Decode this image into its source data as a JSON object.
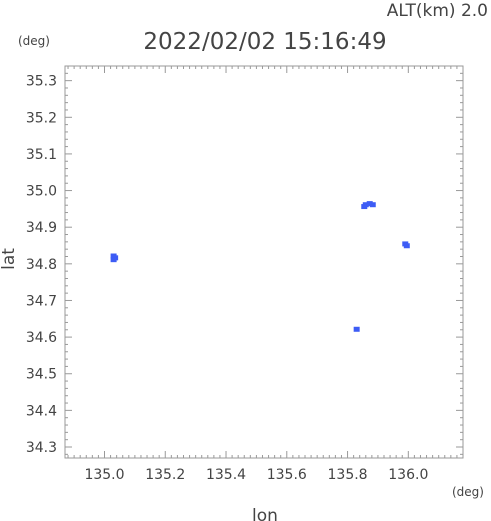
{
  "header": {
    "altitude": "ALT(km) 2.0",
    "datetime": "2022/02/02 15:16:49"
  },
  "chart_data": {
    "type": "scatter",
    "x_unit_label": "(deg)",
    "y_unit_label": "(deg)",
    "xlabel": "lon",
    "ylabel": "lat",
    "xlim": [
      134.87,
      136.18
    ],
    "ylim": [
      34.27,
      35.34
    ],
    "x_ticks": [
      "135.0",
      "135.2",
      "135.4",
      "135.6",
      "135.8",
      "136.0"
    ],
    "y_ticks": [
      "34.3",
      "34.4",
      "34.5",
      "34.6",
      "34.7",
      "34.8",
      "34.9",
      "35.0",
      "35.1",
      "35.2",
      "35.3"
    ],
    "grid": false,
    "marker_color": "#3d5cf5",
    "points": [
      {
        "x": 135.03,
        "y": 34.82
      },
      {
        "x": 135.035,
        "y": 34.815
      },
      {
        "x": 135.03,
        "y": 34.81
      },
      {
        "x": 135.855,
        "y": 34.955
      },
      {
        "x": 135.86,
        "y": 34.96
      },
      {
        "x": 135.873,
        "y": 34.963
      },
      {
        "x": 135.883,
        "y": 34.96
      },
      {
        "x": 135.99,
        "y": 34.853
      },
      {
        "x": 135.995,
        "y": 34.848
      },
      {
        "x": 135.83,
        "y": 34.62
      }
    ]
  }
}
